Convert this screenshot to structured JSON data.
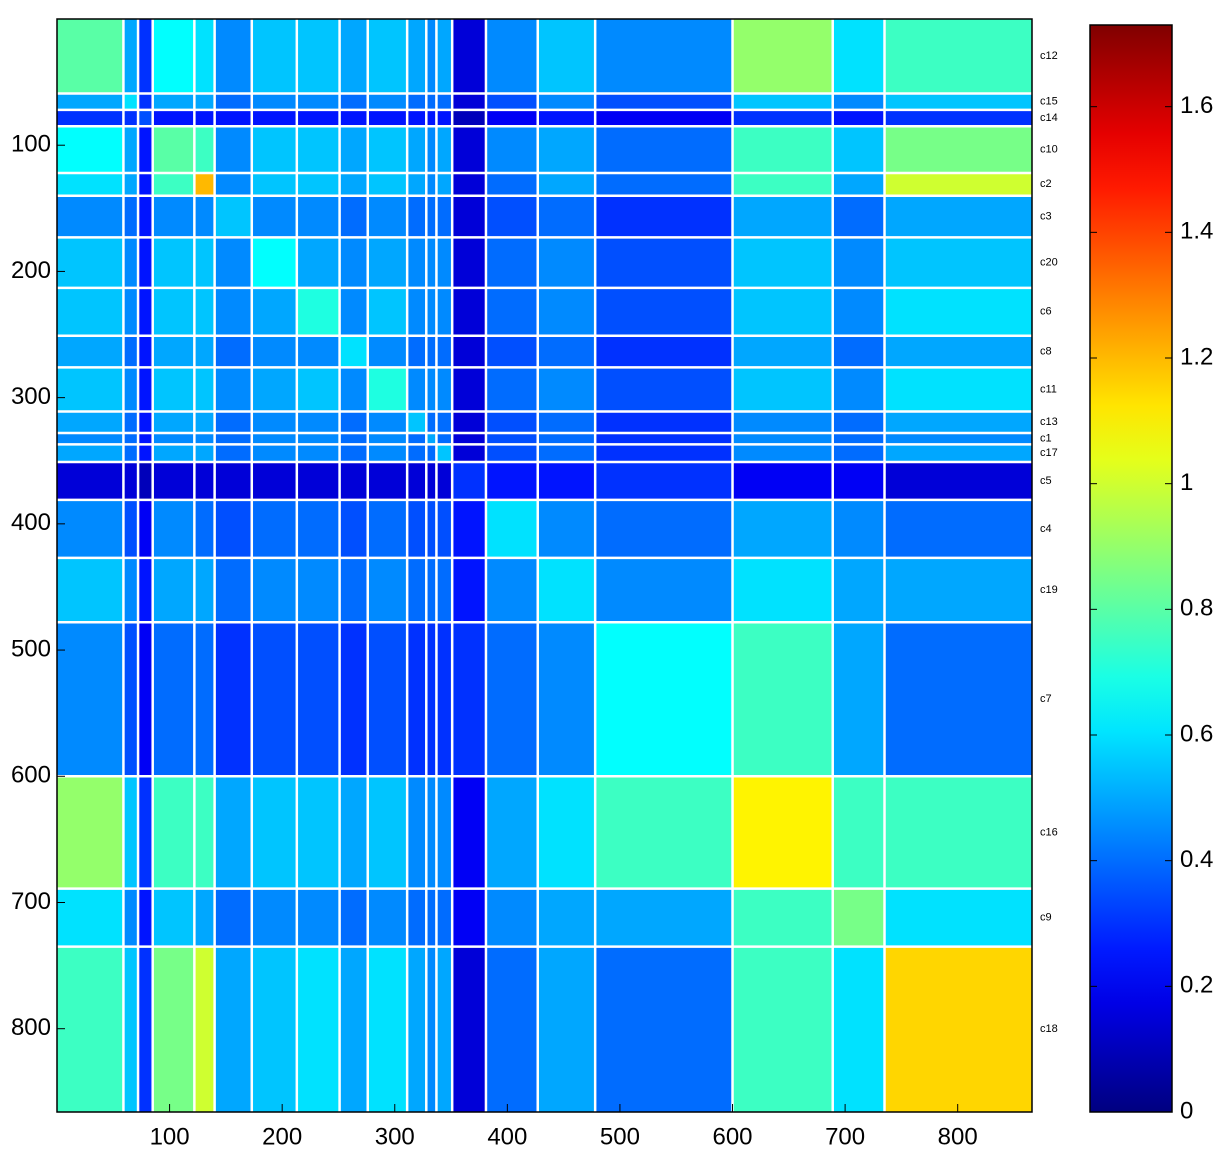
{
  "chart_data": {
    "type": "heatmap",
    "clusters": [
      "c12",
      "c15",
      "c14",
      "c10",
      "c2",
      "c3",
      "c20",
      "c6",
      "c8",
      "c11",
      "c13",
      "c1",
      "c17",
      "c5",
      "c4",
      "c19",
      "c7",
      "c16",
      "c9",
      "c18"
    ],
    "bounds": [
      0,
      59,
      72,
      85,
      122,
      140,
      173,
      213,
      251,
      276,
      311,
      328,
      337,
      351,
      381,
      427,
      478,
      600,
      689,
      735,
      866
    ],
    "matrix": [
      [
        0.8,
        0.5,
        0.3,
        0.65,
        0.6,
        0.45,
        0.55,
        0.55,
        0.5,
        0.55,
        0.5,
        0.45,
        0.5,
        0.15,
        0.45,
        0.55,
        0.45,
        0.9,
        0.6,
        0.75
      ],
      [
        0.5,
        0.6,
        0.3,
        0.5,
        0.5,
        0.4,
        0.45,
        0.45,
        0.4,
        0.45,
        0.4,
        0.4,
        0.4,
        0.15,
        0.35,
        0.45,
        0.35,
        0.55,
        0.45,
        0.55
      ],
      [
        0.3,
        0.3,
        0.35,
        0.25,
        0.25,
        0.25,
        0.25,
        0.25,
        0.25,
        0.25,
        0.25,
        0.25,
        0.25,
        0.1,
        0.2,
        0.25,
        0.2,
        0.3,
        0.25,
        0.3
      ],
      [
        0.65,
        0.5,
        0.25,
        0.8,
        0.75,
        0.45,
        0.55,
        0.55,
        0.5,
        0.55,
        0.5,
        0.45,
        0.5,
        0.15,
        0.45,
        0.5,
        0.4,
        0.75,
        0.55,
        0.85
      ],
      [
        0.6,
        0.5,
        0.25,
        0.75,
        1.2,
        0.45,
        0.55,
        0.55,
        0.5,
        0.55,
        0.5,
        0.45,
        0.5,
        0.15,
        0.4,
        0.5,
        0.4,
        0.75,
        0.5,
        1.0
      ],
      [
        0.45,
        0.4,
        0.25,
        0.45,
        0.45,
        0.55,
        0.45,
        0.45,
        0.4,
        0.45,
        0.4,
        0.4,
        0.4,
        0.15,
        0.35,
        0.4,
        0.3,
        0.5,
        0.4,
        0.5
      ],
      [
        0.55,
        0.45,
        0.25,
        0.55,
        0.55,
        0.45,
        0.65,
        0.5,
        0.45,
        0.5,
        0.45,
        0.45,
        0.45,
        0.15,
        0.4,
        0.45,
        0.35,
        0.55,
        0.45,
        0.55
      ],
      [
        0.55,
        0.45,
        0.25,
        0.55,
        0.55,
        0.45,
        0.5,
        0.7,
        0.45,
        0.55,
        0.45,
        0.45,
        0.45,
        0.15,
        0.4,
        0.45,
        0.35,
        0.55,
        0.45,
        0.6
      ],
      [
        0.5,
        0.4,
        0.25,
        0.5,
        0.5,
        0.4,
        0.45,
        0.45,
        0.6,
        0.45,
        0.4,
        0.4,
        0.4,
        0.15,
        0.35,
        0.4,
        0.3,
        0.5,
        0.4,
        0.5
      ],
      [
        0.55,
        0.45,
        0.25,
        0.55,
        0.55,
        0.45,
        0.5,
        0.55,
        0.45,
        0.7,
        0.45,
        0.45,
        0.45,
        0.15,
        0.4,
        0.45,
        0.35,
        0.55,
        0.45,
        0.6
      ],
      [
        0.5,
        0.4,
        0.25,
        0.5,
        0.5,
        0.4,
        0.45,
        0.45,
        0.4,
        0.45,
        0.55,
        0.4,
        0.4,
        0.15,
        0.35,
        0.4,
        0.3,
        0.45,
        0.4,
        0.5
      ],
      [
        0.45,
        0.4,
        0.25,
        0.45,
        0.45,
        0.4,
        0.45,
        0.45,
        0.4,
        0.45,
        0.4,
        0.5,
        0.4,
        0.15,
        0.35,
        0.4,
        0.3,
        0.45,
        0.4,
        0.45
      ],
      [
        0.5,
        0.4,
        0.25,
        0.5,
        0.5,
        0.4,
        0.45,
        0.45,
        0.4,
        0.45,
        0.4,
        0.4,
        0.55,
        0.15,
        0.35,
        0.4,
        0.3,
        0.45,
        0.4,
        0.5
      ],
      [
        0.15,
        0.15,
        0.1,
        0.15,
        0.15,
        0.15,
        0.15,
        0.15,
        0.15,
        0.15,
        0.15,
        0.15,
        0.15,
        0.3,
        0.25,
        0.25,
        0.3,
        0.2,
        0.2,
        0.15
      ],
      [
        0.45,
        0.35,
        0.2,
        0.45,
        0.4,
        0.35,
        0.4,
        0.4,
        0.35,
        0.4,
        0.35,
        0.35,
        0.35,
        0.25,
        0.6,
        0.45,
        0.4,
        0.5,
        0.45,
        0.4
      ],
      [
        0.55,
        0.45,
        0.25,
        0.5,
        0.5,
        0.4,
        0.45,
        0.45,
        0.4,
        0.45,
        0.4,
        0.4,
        0.4,
        0.25,
        0.45,
        0.6,
        0.45,
        0.6,
        0.5,
        0.5
      ],
      [
        0.45,
        0.35,
        0.2,
        0.4,
        0.4,
        0.3,
        0.35,
        0.35,
        0.3,
        0.35,
        0.3,
        0.3,
        0.3,
        0.3,
        0.4,
        0.45,
        0.65,
        0.75,
        0.5,
        0.4
      ],
      [
        0.9,
        0.55,
        0.3,
        0.75,
        0.75,
        0.5,
        0.55,
        0.55,
        0.5,
        0.55,
        0.45,
        0.45,
        0.45,
        0.2,
        0.5,
        0.6,
        0.75,
        1.1,
        0.75,
        0.75
      ],
      [
        0.6,
        0.45,
        0.25,
        0.55,
        0.5,
        0.4,
        0.45,
        0.45,
        0.4,
        0.45,
        0.4,
        0.4,
        0.4,
        0.2,
        0.45,
        0.5,
        0.5,
        0.75,
        0.85,
        0.6
      ],
      [
        0.75,
        0.55,
        0.3,
        0.85,
        1.0,
        0.5,
        0.55,
        0.6,
        0.5,
        0.6,
        0.5,
        0.45,
        0.5,
        0.15,
        0.4,
        0.5,
        0.4,
        0.75,
        0.6,
        1.15
      ]
    ],
    "xlim": [
      0,
      866
    ],
    "ylim": [
      0,
      866
    ],
    "xticks": [
      100,
      200,
      300,
      400,
      500,
      600,
      700,
      800
    ],
    "yticks": [
      100,
      200,
      300,
      400,
      500,
      600,
      700,
      800
    ],
    "clim": [
      0,
      1.73
    ],
    "cticks": [
      0,
      0.2,
      0.4,
      0.6,
      0.8,
      1,
      1.2,
      1.4,
      1.6
    ],
    "colormap": "jet"
  }
}
